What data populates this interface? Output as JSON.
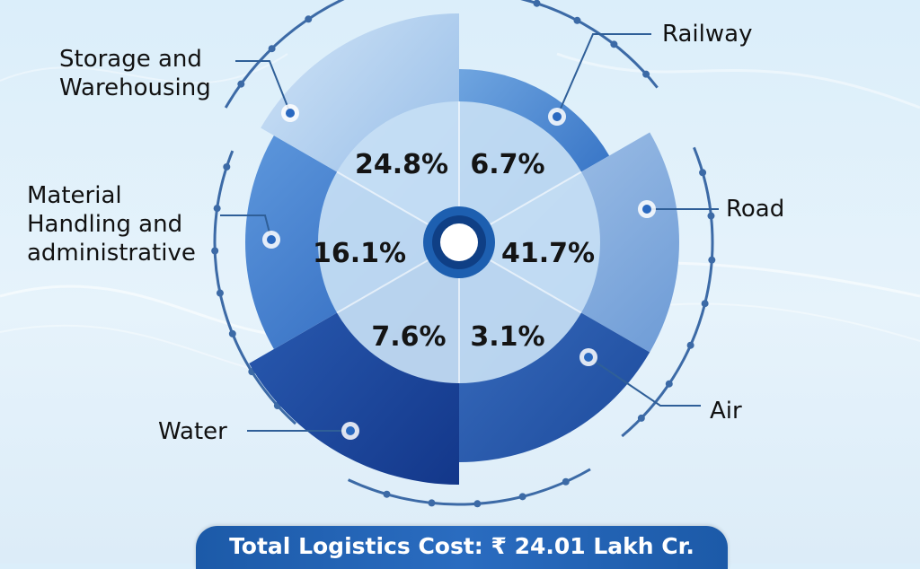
{
  "chart_data": {
    "type": "polar-area",
    "slices": [
      {
        "name": "Railway",
        "value": 6.7,
        "label": "6.7%"
      },
      {
        "name": "Road",
        "value": 41.7,
        "label": "41.7%"
      },
      {
        "name": "Air",
        "value": 3.1,
        "label": "3.1%"
      },
      {
        "name": "Water",
        "value": 7.6,
        "label": "7.6%"
      },
      {
        "name": "Material\nHandling and\nadministrative",
        "value": 16.1,
        "label": "16.1%"
      },
      {
        "name": "Storage and\nWarehousing",
        "value": 24.8,
        "label": "24.8%"
      }
    ],
    "unit": "%"
  },
  "footer": {
    "total_label": "Total Logistics Cost: ₹ 24.01 Lakh Cr."
  },
  "colors": {
    "banner": "#1c5aa8",
    "inner_disc": "#c3dcf3",
    "center_ring": "#1d5fb0"
  }
}
